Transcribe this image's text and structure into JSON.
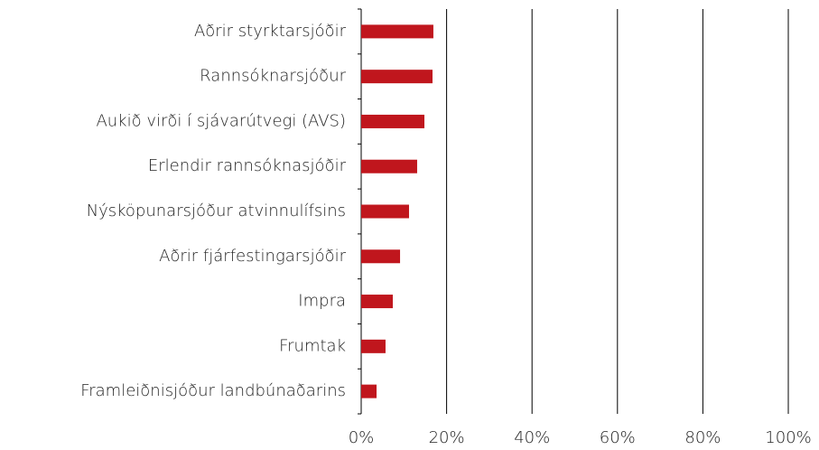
{
  "chart_data": {
    "type": "bar",
    "orientation": "horizontal",
    "categories": [
      "Aðrir styrktarsjóðir",
      "Rannsóknarsjóður",
      "Aukið virði í sjávarútvegi (AVS)",
      "Erlendir rannsóknasjóðir",
      "Nýsköpunarsjóður atvinnulífsins",
      "Aðrir fjárfestingarsjóðir",
      "Impra",
      "Frumtak",
      "Framleiðnisjóður landbúnaðarins"
    ],
    "values": [
      16.9,
      16.7,
      14.8,
      13.1,
      11.2,
      9.1,
      7.4,
      5.7,
      3.6
    ],
    "color": "#c0161d",
    "xlim": [
      0,
      100
    ],
    "xticks": [
      {
        "value": 0,
        "label": "0%"
      },
      {
        "value": 20,
        "label": "20%"
      },
      {
        "value": 40,
        "label": "40%"
      },
      {
        "value": 60,
        "label": "60%"
      },
      {
        "value": 80,
        "label": "80%"
      },
      {
        "value": 100,
        "label": "100%"
      }
    ],
    "grid": true
  }
}
